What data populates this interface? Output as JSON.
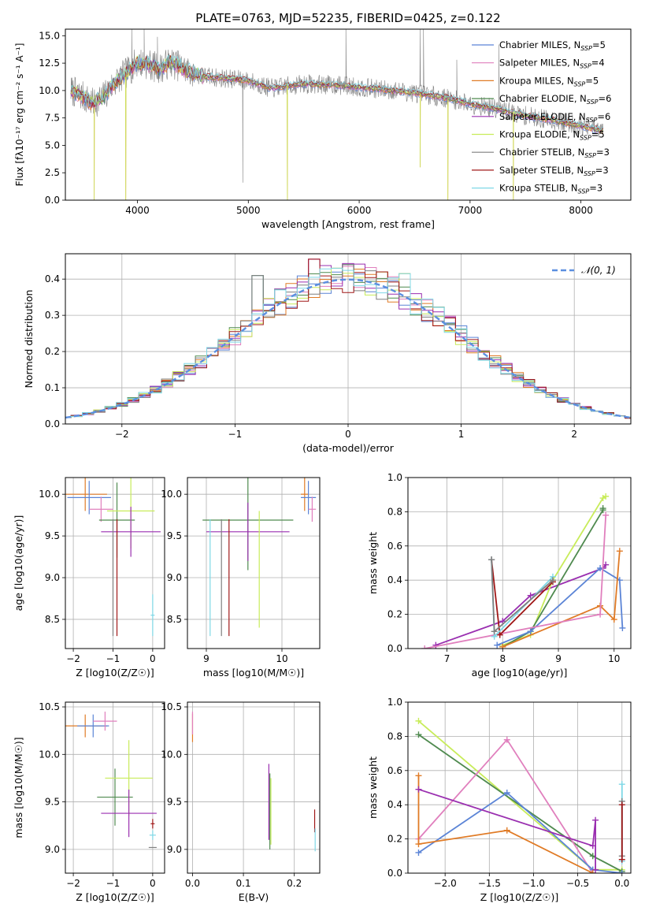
{
  "figure": {
    "title": "PLATE=0763, MJD=52235, FIBERID=0425, z=0.122"
  },
  "colors": {
    "Chabrier MILES": "#5b84d6",
    "Salpeter MILES": "#e07fbd",
    "Kroupa MILES": "#e07b26",
    "Chabrier ELODIE": "#4f8a4f",
    "Salpeter ELODIE": "#9a2fb0",
    "Kroupa ELODIE": "#c8ec5a",
    "Chabrier STELIB": "#7f7f7f",
    "Salpeter STELIB": "#a01818",
    "Kroupa STELIB": "#7fd8e6",
    "gaussian": "#5b8fe0"
  },
  "chart_data": [
    {
      "id": "spectrum",
      "type": "line",
      "title": "PLATE=0763, MJD=52235, FIBERID=0425, z=0.122",
      "xlabel": "wavelength [Angstrom, rest frame]",
      "ylabel": "Flux [fλ10⁻¹⁷ erg cm⁻² s⁻¹ A⁻¹]",
      "xlim": [
        3350,
        8450
      ],
      "ylim": [
        0,
        15.6
      ],
      "xticks": [
        4000,
        5000,
        6000,
        7000,
        8000
      ],
      "yticks": [
        0.0,
        2.5,
        5.0,
        7.5,
        10.0,
        12.5,
        15.0
      ],
      "ytick_labels": [
        "0.0",
        "2.5",
        "5.0",
        "7.5",
        "10.0",
        "12.5",
        "15.0"
      ],
      "grid": false,
      "legend_position": "top-right",
      "legend": [
        {
          "name": "Chabrier MILES",
          "label": "Chabrier MILES, N_SSP=5"
        },
        {
          "name": "Salpeter MILES",
          "label": "Salpeter MILES, N_SSP=4"
        },
        {
          "name": "Kroupa MILES",
          "label": "Kroupa MILES, N_SSP=5"
        },
        {
          "name": "Chabrier ELODIE",
          "label": "Chabrier ELODIE, N_SSP=6"
        },
        {
          "name": "Salpeter ELODIE",
          "label": "Salpeter ELODIE, N_SSP=6"
        },
        {
          "name": "Kroupa ELODIE",
          "label": "Kroupa ELODIE, N_SSP=5"
        },
        {
          "name": "Chabrier STELIB",
          "label": "Chabrier STELIB, N_SSP=3"
        },
        {
          "name": "Salpeter STELIB",
          "label": "Salpeter STELIB, N_SSP=3"
        },
        {
          "name": "Kroupa STELIB",
          "label": "Kroupa STELIB, N_SSP=3"
        }
      ],
      "model_continuum": {
        "x": [
          3400,
          3500,
          3600,
          3700,
          3800,
          3900,
          4000,
          4100,
          4200,
          4300,
          4400,
          4500,
          4600,
          4800,
          5000,
          5200,
          5500,
          5800,
          6000,
          6200,
          6500,
          6800,
          7000,
          7200,
          7500,
          7800,
          8000,
          8200
        ],
        "y": [
          10.0,
          9.5,
          8.8,
          9.5,
          10.8,
          11.6,
          12.6,
          12.4,
          12.0,
          12.6,
          12.1,
          11.6,
          11.3,
          11.1,
          10.9,
          10.2,
          10.6,
          10.5,
          10.3,
          10.1,
          9.8,
          9.3,
          8.8,
          8.4,
          7.7,
          7.2,
          6.8,
          6.3
        ]
      },
      "model_dips": [
        {
          "x": 3610,
          "y": 0.0
        },
        {
          "x": 3895,
          "y": 0.0
        },
        {
          "x": 5352,
          "y": 0.0
        },
        {
          "x": 6550,
          "y": 3.0
        },
        {
          "x": 6800,
          "y": 0.0
        },
        {
          "x": 7390,
          "y": 0.0
        }
      ],
      "observed": {
        "noise_amplitude": 0.9,
        "spikes": [
          {
            "x": 3950,
            "y": 15.6
          },
          {
            "x": 4060,
            "y": 15.6
          },
          {
            "x": 4180,
            "y": 14.9
          },
          {
            "x": 4950,
            "y": 1.6
          },
          {
            "x": 5880,
            "y": 15.6
          },
          {
            "x": 6550,
            "y": 15.6
          },
          {
            "x": 6580,
            "y": 15.6
          },
          {
            "x": 6880,
            "y": 12.8
          },
          {
            "x": 7260,
            "y": 14.2
          }
        ]
      }
    },
    {
      "id": "residuals",
      "type": "line",
      "xlabel": "(data-model)/error",
      "ylabel": "Normed distribution",
      "xlim": [
        -2.5,
        2.5
      ],
      "ylim": [
        0,
        0.47
      ],
      "xticks": [
        -2,
        -1,
        0,
        1,
        2
      ],
      "xtick_labels": [
        "−2",
        "−1",
        "0",
        "1",
        "2"
      ],
      "yticks": [
        0.0,
        0.1,
        0.2,
        0.3,
        0.4
      ],
      "ytick_labels": [
        "0.0",
        "0.1",
        "0.2",
        "0.3",
        "0.4"
      ],
      "grid": true,
      "legend_position": "top-right",
      "bin_width": 0.1,
      "reference": {
        "name": "𝒩(0, 1)",
        "mean": 0,
        "sigma": 1
      },
      "histogram_peak_offsets": {
        "x": [
          -0.75,
          -0.25,
          -0.1,
          0.05,
          0.35,
          0.5
        ],
        "y": [
          0.41,
          0.455,
          0.43,
          0.44,
          0.42,
          0.415
        ]
      }
    },
    {
      "id": "age-vs-Z",
      "type": "scatter",
      "xlabel": "Z [log10(Z/Z☉)]",
      "ylabel": "age  [log10(age/yr)]",
      "xlim": [
        -2.2,
        0.3
      ],
      "ylim": [
        8.15,
        10.2
      ],
      "xticks": [
        -2,
        -1,
        0
      ],
      "xtick_labels": [
        "−2",
        "−1",
        "0"
      ],
      "yticks": [
        8.5,
        9.0,
        9.5,
        10.0
      ],
      "ytick_labels": [
        "8.5",
        "9.0",
        "9.5",
        "10.0"
      ],
      "grid": true,
      "points": [
        {
          "series": "Kroupa MILES",
          "x": -1.7,
          "xerr": 0.55,
          "y": 10.0,
          "yerr": 0.2
        },
        {
          "series": "Chabrier MILES",
          "x": -1.6,
          "xerr": 0.55,
          "y": 9.96,
          "yerr": 0.2
        },
        {
          "series": "Salpeter MILES",
          "x": -1.3,
          "xerr": 0.3,
          "y": 9.82,
          "yerr": 0.15
        },
        {
          "series": "Chabrier ELODIE",
          "x": -0.9,
          "xerr": 0.45,
          "y": 9.69,
          "yerr": 0.45
        },
        {
          "series": "Kroupa ELODIE",
          "x": -0.55,
          "xerr": 0.6,
          "y": 9.8,
          "yerr": 0.45
        },
        {
          "series": "Salpeter ELODIE",
          "x": -0.55,
          "xerr": 0.75,
          "y": 9.55,
          "yerr": 0.3
        },
        {
          "series": "Chabrier STELIB",
          "x": -1.0,
          "xerr": 0.0,
          "y": 9.0,
          "yerr": 0.7
        },
        {
          "series": "Kroupa STELIB",
          "x": 0.0,
          "xerr": 0.05,
          "y": 8.55,
          "yerr": 0.25
        },
        {
          "series": "Salpeter STELIB",
          "x": -0.9,
          "xerr": 0.0,
          "y": 9.0,
          "yerr": 0.7
        }
      ]
    },
    {
      "id": "age-vs-mass",
      "type": "scatter",
      "xlabel": "mass [log10(M/M☉)]",
      "ylabel": "",
      "xlim": [
        8.75,
        10.5
      ],
      "ylim": [
        8.15,
        10.2
      ],
      "xticks": [
        9,
        10
      ],
      "xtick_labels": [
        "9",
        "10"
      ],
      "yticks": [
        8.5,
        9.0,
        9.5,
        10.0
      ],
      "ytick_labels": [
        "8.5",
        "9.0",
        "9.5",
        "10.0"
      ],
      "grid": true,
      "points": [
        {
          "series": "Chabrier ELODIE",
          "x": 9.55,
          "xerr": 0.6,
          "y": 9.69,
          "yerr": 0.6
        },
        {
          "series": "Salpeter ELODIE",
          "x": 9.55,
          "xerr": 0.55,
          "y": 9.55,
          "yerr": 0.35
        },
        {
          "series": "Kroupa ELODIE",
          "x": 9.7,
          "xerr": 0.0,
          "y": 9.1,
          "yerr": 0.7
        },
        {
          "series": "Salpeter STELIB",
          "x": 9.3,
          "xerr": 0.0,
          "y": 9.0,
          "yerr": 0.7
        },
        {
          "series": "Kroupa STELIB",
          "x": 9.05,
          "xerr": 0.0,
          "y": 9.0,
          "yerr": 0.7
        },
        {
          "series": "Chabrier STELIB",
          "x": 9.2,
          "xerr": 0.0,
          "y": 9.0,
          "yerr": 0.7
        },
        {
          "series": "Kroupa MILES",
          "x": 10.3,
          "xerr": 0.05,
          "y": 10.0,
          "yerr": 0.2
        },
        {
          "series": "Chabrier MILES",
          "x": 10.35,
          "xerr": 0.1,
          "y": 9.96,
          "yerr": 0.2
        },
        {
          "series": "Salpeter MILES",
          "x": 10.4,
          "xerr": 0.05,
          "y": 9.82,
          "yerr": 0.15
        }
      ]
    },
    {
      "id": "massweight-vs-age",
      "type": "line",
      "xlabel": "age  [log10(age/yr)]",
      "ylabel": "mass weight",
      "xlim": [
        6.3,
        10.3
      ],
      "ylim": [
        0,
        1.0
      ],
      "xticks": [
        7,
        8,
        9,
        10
      ],
      "xtick_labels": [
        "7",
        "8",
        "9",
        "10"
      ],
      "yticks": [
        0.0,
        0.2,
        0.4,
        0.6,
        0.8,
        1.0
      ],
      "ytick_labels": [
        "0.0",
        "0.2",
        "0.4",
        "0.6",
        "0.8",
        "1.0"
      ],
      "grid": true,
      "series": [
        {
          "name": "Salpeter ELODIE",
          "x": [
            6.8,
            8.0,
            8.5,
            9.8,
            9.85
          ],
          "y": [
            0.02,
            0.16,
            0.31,
            0.47,
            0.49
          ]
        },
        {
          "name": "Kroupa ELODIE",
          "x": [
            8.0,
            8.5,
            8.9,
            9.8,
            9.85
          ],
          "y": [
            0.02,
            0.08,
            0.4,
            0.88,
            0.89
          ]
        },
        {
          "name": "Chabrier ELODIE",
          "x": [
            8.0,
            8.5,
            9.8,
            9.8
          ],
          "y": [
            0.01,
            0.1,
            0.81,
            0.82
          ]
        },
        {
          "name": "Chabrier MILES",
          "x": [
            7.9,
            8.5,
            9.75,
            10.1,
            10.15
          ],
          "y": [
            0.02,
            0.1,
            0.47,
            0.4,
            0.12
          ]
        },
        {
          "name": "Kroupa MILES",
          "x": [
            8.0,
            9.75,
            10.0,
            10.1
          ],
          "y": [
            0.01,
            0.25,
            0.17,
            0.57
          ]
        },
        {
          "name": "Salpeter MILES",
          "x": [
            6.6,
            9.75,
            9.85
          ],
          "y": [
            0.0,
            0.2,
            0.78
          ]
        },
        {
          "name": "Salpeter STELIB",
          "x": [
            7.8,
            7.95,
            8.9
          ],
          "y": [
            0.52,
            0.08,
            0.39
          ]
        },
        {
          "name": "Kroupa STELIB",
          "x": [
            7.8,
            7.85,
            8.9
          ],
          "y": [
            0.52,
            0.07,
            0.42
          ]
        },
        {
          "name": "Chabrier STELIB",
          "x": [
            7.8,
            7.85,
            8.9
          ],
          "y": [
            0.52,
            0.1,
            0.4
          ]
        }
      ]
    },
    {
      "id": "mass-vs-Z",
      "type": "scatter",
      "xlabel": "Z [log10(Z/Z☉)]",
      "ylabel": "mass [log10(M/M☉)]",
      "xlim": [
        -2.2,
        0.3
      ],
      "ylim": [
        8.75,
        10.55
      ],
      "xticks": [
        -2,
        -1,
        0
      ],
      "xtick_labels": [
        "−2",
        "−1",
        "0"
      ],
      "yticks": [
        9.0,
        9.5,
        10.0,
        10.5
      ],
      "ytick_labels": [
        "9.0",
        "9.5",
        "10.0",
        "10.5"
      ],
      "grid": true,
      "points": [
        {
          "series": "Kroupa MILES",
          "x": -1.7,
          "xerr": 0.55,
          "y": 10.3,
          "yerr": 0.12
        },
        {
          "series": "Chabrier MILES",
          "x": -1.5,
          "xerr": 0.4,
          "y": 10.3,
          "yerr": 0.12
        },
        {
          "series": "Salpeter MILES",
          "x": -1.2,
          "xerr": 0.3,
          "y": 10.35,
          "yerr": 0.1
        },
        {
          "series": "Chabrier ELODIE",
          "x": -0.95,
          "xerr": 0.45,
          "y": 9.55,
          "yerr": 0.3
        },
        {
          "series": "Kroupa ELODIE",
          "x": -0.6,
          "xerr": 0.6,
          "y": 9.75,
          "yerr": 0.4
        },
        {
          "series": "Salpeter ELODIE",
          "x": -0.6,
          "xerr": 0.7,
          "y": 9.38,
          "yerr": 0.25
        },
        {
          "series": "Chabrier STELIB",
          "x": 0.0,
          "xerr": 0.1,
          "y": 9.02,
          "yerr": 0.0
        },
        {
          "series": "Kroupa STELIB",
          "x": 0.0,
          "xerr": 0.08,
          "y": 9.15,
          "yerr": 0.05
        },
        {
          "series": "Salpeter STELIB",
          "x": 0.0,
          "xerr": 0.05,
          "y": 9.27,
          "yerr": 0.05
        }
      ]
    },
    {
      "id": "mass-vs-ebv",
      "type": "scatter",
      "xlabel": "E(B-V)",
      "ylabel": "",
      "xlim": [
        -0.01,
        0.25
      ],
      "ylim": [
        8.75,
        10.55
      ],
      "xticks": [
        0.0,
        0.1,
        0.2
      ],
      "xtick_labels": [
        "0.0",
        "0.1",
        "0.2"
      ],
      "yticks": [
        9.0,
        9.5,
        10.0,
        10.5
      ],
      "ytick_labels": [
        "9.0",
        "9.5",
        "10.0",
        "10.5"
      ],
      "grid": true,
      "points": [
        {
          "series": "Kroupa MILES",
          "x": 0.0,
          "xerr": 0.0,
          "y": 10.28,
          "yerr": 0.15
        },
        {
          "series": "Salpeter MILES",
          "x": 0.0,
          "xerr": 0.0,
          "y": 10.33,
          "yerr": 0.12
        },
        {
          "series": "Salpeter ELODIE",
          "x": 0.15,
          "xerr": 0.0,
          "y": 9.5,
          "yerr": 0.4
        },
        {
          "series": "Chabrier ELODIE",
          "x": 0.152,
          "xerr": 0.0,
          "y": 9.4,
          "yerr": 0.4
        },
        {
          "series": "Kroupa ELODIE",
          "x": 0.154,
          "xerr": 0.0,
          "y": 9.4,
          "yerr": 0.35
        },
        {
          "series": "Salpeter STELIB",
          "x": 0.24,
          "xerr": 0.0,
          "y": 9.3,
          "yerr": 0.12
        },
        {
          "series": "Kroupa STELIB",
          "x": 0.241,
          "xerr": 0.0,
          "y": 9.1,
          "yerr": 0.12
        }
      ]
    },
    {
      "id": "massweight-vs-Z",
      "type": "line",
      "xlabel": "Z [log10(Z/Z☉)]",
      "ylabel": "mass weight",
      "xlim": [
        -2.42,
        0.1
      ],
      "ylim": [
        0,
        1.0
      ],
      "xticks": [
        -2.0,
        -1.5,
        -1.0,
        -0.5,
        0.0
      ],
      "xtick_labels": [
        "−2.0",
        "−1.5",
        "−1.0",
        "−0.5",
        "0.0"
      ],
      "yticks": [
        0.0,
        0.2,
        0.4,
        0.6,
        0.8,
        1.0
      ],
      "ytick_labels": [
        "0.0",
        "0.2",
        "0.4",
        "0.6",
        "0.8",
        "1.0"
      ],
      "grid": true,
      "series": [
        {
          "name": "Kroupa ELODIE",
          "x": [
            -2.3,
            -0.33,
            0.0
          ],
          "y": [
            0.89,
            0.02,
            0.02
          ]
        },
        {
          "name": "Chabrier ELODIE",
          "x": [
            -2.3,
            -0.33,
            0.0
          ],
          "y": [
            0.81,
            0.1,
            0.01
          ]
        },
        {
          "name": "Salpeter MILES",
          "x": [
            -2.3,
            -1.3,
            -0.33
          ],
          "y": [
            0.2,
            0.78,
            0.0
          ]
        },
        {
          "name": "Chabrier MILES",
          "x": [
            -2.3,
            -1.3,
            -0.33,
            0.0
          ],
          "y": [
            0.12,
            0.47,
            0.02,
            0.0
          ]
        },
        {
          "name": "Kroupa MILES",
          "x": [
            -2.3,
            -2.3,
            -1.3,
            -0.33
          ],
          "y": [
            0.57,
            0.17,
            0.25,
            0.0
          ]
        },
        {
          "name": "Salpeter ELODIE",
          "x": [
            -2.3,
            -0.33,
            -0.3,
            -0.3
          ],
          "y": [
            0.49,
            0.16,
            0.31,
            0.02
          ]
        },
        {
          "name": "Kroupa STELIB",
          "x": [
            0.0,
            0.0,
            0.0
          ],
          "y": [
            0.52,
            0.42,
            0.07
          ]
        },
        {
          "name": "Chabrier STELIB",
          "x": [
            0.0,
            0.0
          ],
          "y": [
            0.42,
            0.1
          ]
        },
        {
          "name": "Salpeter STELIB",
          "x": [
            0.0,
            0.0
          ],
          "y": [
            0.4,
            0.08
          ]
        }
      ]
    }
  ]
}
